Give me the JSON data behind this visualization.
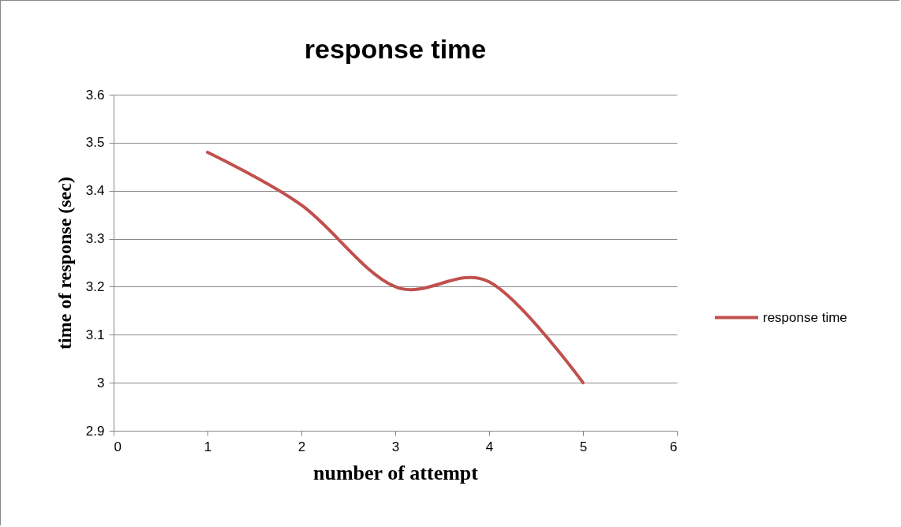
{
  "chart_data": {
    "type": "line",
    "title": "response time",
    "xlabel": "number of attempt",
    "ylabel": "time of response (sec)",
    "x": [
      1,
      2,
      3,
      4,
      5
    ],
    "series": [
      {
        "name": "response time",
        "color": "#c0504d",
        "values": [
          3.48,
          3.37,
          3.2,
          3.21,
          3.0
        ]
      }
    ],
    "xlim": [
      0,
      6
    ],
    "xticks": [
      0,
      1,
      2,
      3,
      4,
      5,
      6
    ],
    "ylim": [
      2.9,
      3.6
    ],
    "yticks": [
      2.9,
      {
        "value": 3,
        "label": "3"
      },
      3.1,
      3.2,
      3.3,
      3.4,
      3.5,
      3.6
    ],
    "grid": "y",
    "legend": "right",
    "marker": "none",
    "line_style": "solid"
  }
}
